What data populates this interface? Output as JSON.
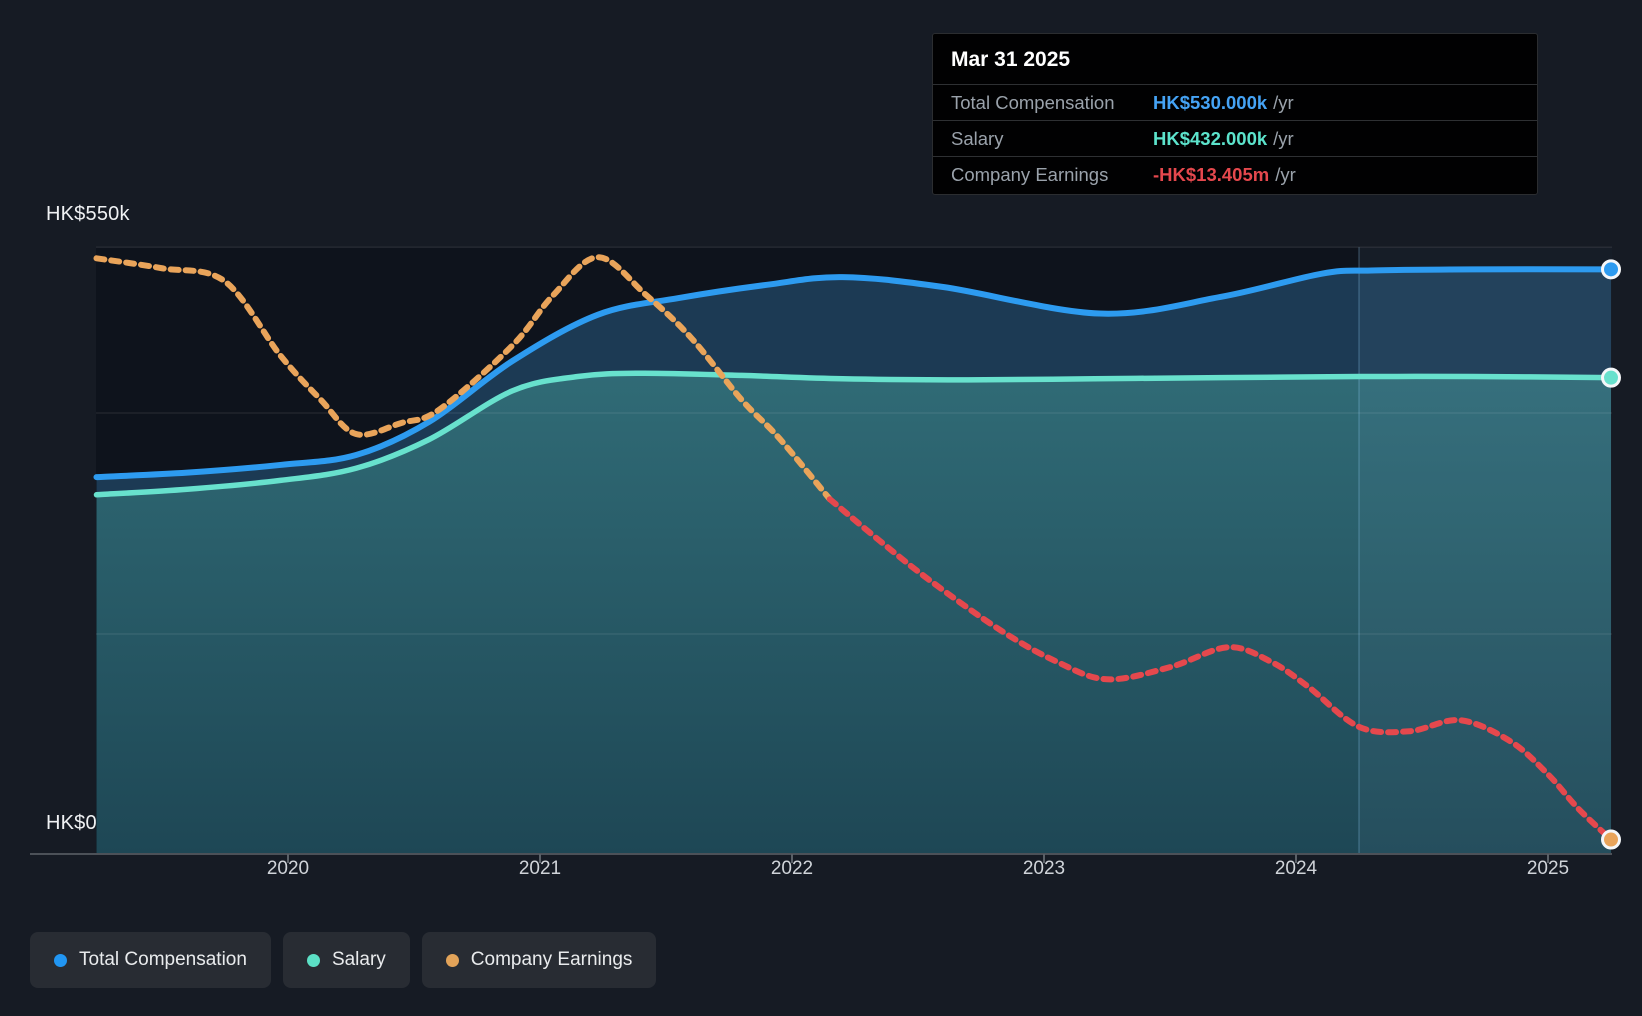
{
  "chart": {
    "y_axis": {
      "top_label": "HK$550k",
      "bottom_label": "HK$0"
    },
    "tooltip": {
      "date": "Mar 31 2025",
      "rows": [
        {
          "label": "Total Compensation",
          "value": "HK$530.000k",
          "unit": "/yr",
          "color": "#45a3f5"
        },
        {
          "label": "Salary",
          "value": "HK$432.000k",
          "unit": "/yr",
          "color": "#5ce3cc"
        },
        {
          "label": "Company Earnings",
          "value": "-HK$13.405m",
          "unit": "/yr",
          "color": "#e5484d"
        }
      ]
    },
    "legend": [
      {
        "label": "Total Compensation",
        "color": "#2196f3"
      },
      {
        "label": "Salary",
        "color": "#5ce0c6"
      },
      {
        "label": "Company Earnings",
        "color": "#e2a359"
      }
    ]
  },
  "chart_data": {
    "type": "area",
    "title": "Executive compensation over time",
    "x_unit": "year",
    "x_range": [
      2019.24,
      2025.25
    ],
    "ylim_k": [
      0,
      550
    ],
    "gridlines_k": [
      550,
      400,
      200,
      0
    ],
    "x_ticks": [
      {
        "label": "2020",
        "year": 2020
      },
      {
        "label": "2021",
        "year": 2021
      },
      {
        "label": "2022",
        "year": 2022
      },
      {
        "label": "2023",
        "year": 2023
      },
      {
        "label": "2024",
        "year": 2024
      },
      {
        "label": "2025",
        "year": 2025
      }
    ],
    "highlight_band": {
      "from_year": 2024.25,
      "to_year": 2025.25
    },
    "series": [
      {
        "name": "Total Compensation",
        "type": "line-area",
        "color": "#2d9bf0",
        "fill": "#1c3a54",
        "end_marker": true,
        "points": [
          [
            2019.24,
            342
          ],
          [
            2019.6,
            346
          ],
          [
            2019.97,
            353
          ],
          [
            2020.27,
            362
          ],
          [
            2020.56,
            392
          ],
          [
            2020.89,
            447
          ],
          [
            2021.23,
            489
          ],
          [
            2021.55,
            504
          ],
          [
            2021.9,
            516
          ],
          [
            2022.2,
            523
          ],
          [
            2022.6,
            514
          ],
          [
            2023.22,
            490
          ],
          [
            2023.7,
            505
          ],
          [
            2024.1,
            526
          ],
          [
            2024.3,
            529
          ],
          [
            2024.7,
            530
          ],
          [
            2025.25,
            530
          ]
        ]
      },
      {
        "name": "Salary",
        "type": "line-area",
        "color": "#68e1cd",
        "fill_gradient": [
          "#306b76",
          "#1e4755"
        ],
        "end_marker": true,
        "points": [
          [
            2019.24,
            326
          ],
          [
            2019.6,
            331
          ],
          [
            2019.97,
            339
          ],
          [
            2020.27,
            350
          ],
          [
            2020.56,
            376
          ],
          [
            2020.89,
            420
          ],
          [
            2021.15,
            433
          ],
          [
            2021.4,
            436
          ],
          [
            2021.8,
            434
          ],
          [
            2022.2,
            431
          ],
          [
            2022.7,
            430
          ],
          [
            2023.2,
            431
          ],
          [
            2023.7,
            432
          ],
          [
            2024.25,
            433
          ],
          [
            2024.7,
            433
          ],
          [
            2025.25,
            432
          ]
        ]
      },
      {
        "name": "Company Earnings",
        "type": "dotted-line",
        "color_positive": "#e9a45a",
        "color_negative": "#e5484d",
        "transition_year": 2022.15,
        "end_marker": true,
        "latest_value": "-HK$13.405m /yr",
        "scale_note": "plotted on its own unlabeled axis; y values below are chart positions expressed in HK$k-equivalents of the compensation axis",
        "points": [
          [
            2019.24,
            540
          ],
          [
            2019.5,
            531
          ],
          [
            2019.75,
            519
          ],
          [
            2019.97,
            452
          ],
          [
            2020.13,
            412
          ],
          [
            2020.27,
            381
          ],
          [
            2020.45,
            391
          ],
          [
            2020.6,
            403
          ],
          [
            2020.89,
            461
          ],
          [
            2021.05,
            506
          ],
          [
            2021.23,
            541
          ],
          [
            2021.42,
            507
          ],
          [
            2021.6,
            468
          ],
          [
            2021.8,
            412
          ],
          [
            2021.95,
            377
          ],
          [
            2022.15,
            322
          ],
          [
            2022.35,
            284
          ],
          [
            2022.55,
            248
          ],
          [
            2022.83,
            203
          ],
          [
            2023.05,
            175
          ],
          [
            2023.25,
            159
          ],
          [
            2023.5,
            170
          ],
          [
            2023.73,
            188
          ],
          [
            2023.9,
            175
          ],
          [
            2024.05,
            152
          ],
          [
            2024.25,
            116
          ],
          [
            2024.45,
            112
          ],
          [
            2024.65,
            122
          ],
          [
            2024.85,
            103
          ],
          [
            2025.0,
            73
          ],
          [
            2025.12,
            42
          ],
          [
            2025.25,
            14
          ]
        ]
      }
    ]
  }
}
